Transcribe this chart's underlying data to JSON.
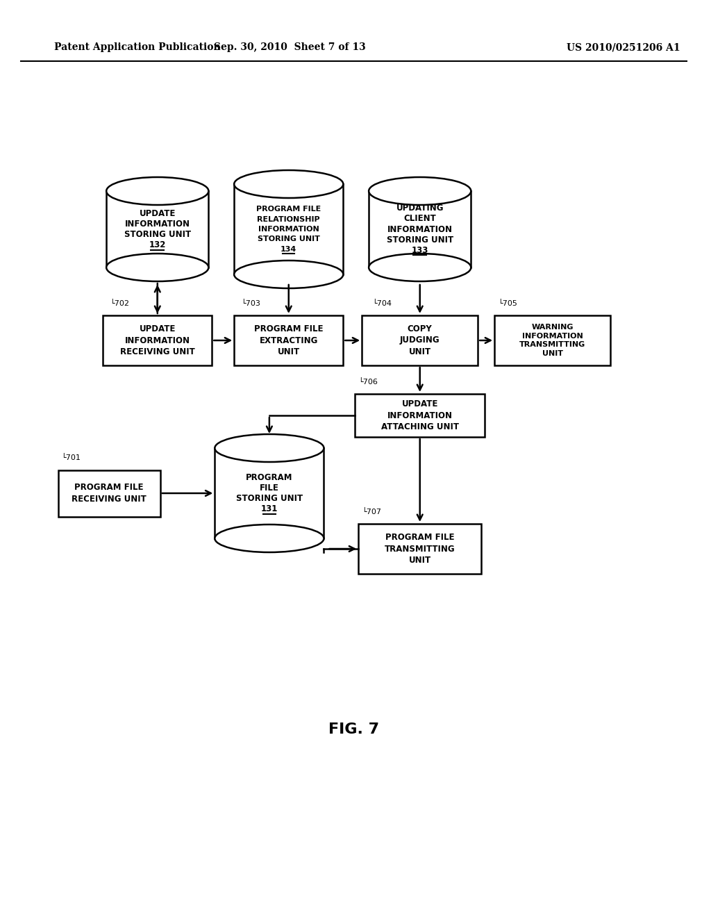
{
  "bg_color": "#ffffff",
  "header_left": "Patent Application Publication",
  "header_mid": "Sep. 30, 2010  Sheet 7 of 13",
  "header_right": "US 2010/0251206 A1",
  "fig_label": "FIG. 7"
}
